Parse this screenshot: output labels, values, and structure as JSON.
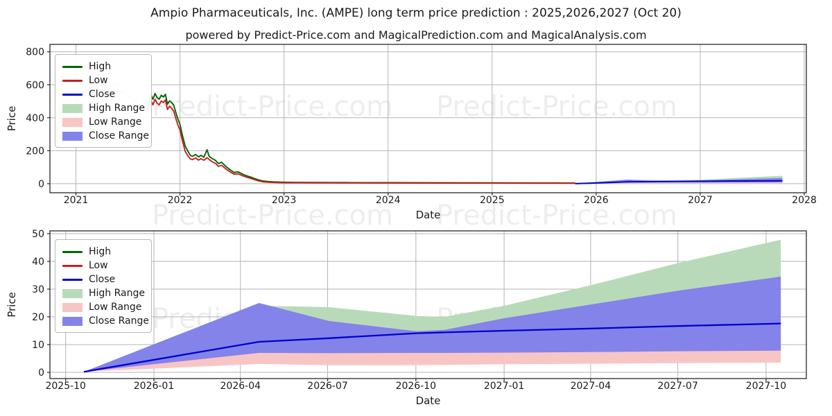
{
  "title": "Ampio Pharmaceuticals, Inc. (AMPE) long term price prediction : 2025,2026,2027 (Oct 20)",
  "subtitle": "powered by Predict-Price.com and MagicalPrediction.com and MagicalAnalysis.com",
  "watermark": "Predict-Price.com",
  "legend": [
    {
      "label": "High",
      "type": "line",
      "color": "#006600"
    },
    {
      "label": "Low",
      "type": "line",
      "color": "#c81e1e"
    },
    {
      "label": "Close",
      "type": "line",
      "color": "#0000cc"
    },
    {
      "label": "High Range",
      "type": "patch",
      "color": "#b9dab9"
    },
    {
      "label": "Low Range",
      "type": "patch",
      "color": "#f8c5c5"
    },
    {
      "label": "Close Range",
      "type": "patch",
      "color": "#8383e9"
    }
  ],
  "colors": {
    "high_line": "#006600",
    "low_line": "#c81e1e",
    "close_line": "#0000cc",
    "high_range_fill": "#b9dab9",
    "low_range_fill": "#f8c5c5",
    "close_range_fill": "#8383e9",
    "grid": "#b3b3b3",
    "frame": "#262626"
  },
  "forecast": {
    "x": [
      2025.8,
      2026.3,
      2026.5,
      2026.75,
      2026.83,
      2027.0,
      2027.25,
      2027.5,
      2027.79
    ],
    "close": [
      0.2,
      11.0,
      12.3,
      14.1,
      14.4,
      15.0,
      15.8,
      16.7,
      17.6
    ],
    "close_range_top": [
      0.2,
      25.0,
      18.5,
      14.8,
      15.3,
      19.5,
      24.5,
      29.5,
      34.5
    ],
    "close_range_bottom": [
      0.2,
      7.0,
      6.9,
      7.0,
      7.0,
      7.1,
      7.3,
      7.6,
      7.8
    ],
    "high_range_top": [
      0.2,
      24.0,
      23.5,
      20.3,
      20.0,
      24.0,
      31.5,
      39.5,
      47.8
    ],
    "low_range_bottom": [
      0.2,
      3.0,
      2.6,
      2.6,
      2.7,
      2.9,
      3.1,
      3.3,
      3.5
    ]
  },
  "chart_data": [
    {
      "type": "line",
      "name": "historical-price-with-forecast",
      "xlabel": "Date",
      "ylabel": "Price",
      "xlim": [
        2020.75,
        2028.02
      ],
      "ylim": [
        -55,
        845
      ],
      "xticks": [
        2021,
        2022,
        2023,
        2024,
        2025,
        2026,
        2027,
        2028
      ],
      "xtick_labels": [
        "2021",
        "2022",
        "2023",
        "2024",
        "2025",
        "2026",
        "2027",
        "2028"
      ],
      "yticks": [
        0,
        200,
        400,
        600,
        800
      ],
      "grid": true,
      "legend_position": "upper left",
      "draw": [
        "hist_faint",
        "hist",
        "forecast"
      ],
      "series": {
        "hist_faint_comment": "triples [x, high, low], drawn semi-transparent",
        "hist_faint": [
          [
            2021.0,
            470,
            415
          ],
          [
            2021.02,
            500,
            440
          ],
          [
            2021.04,
            540,
            470
          ],
          [
            2021.06,
            520,
            450
          ],
          [
            2021.08,
            560,
            485
          ],
          [
            2021.1,
            610,
            525
          ],
          [
            2021.12,
            690,
            580
          ],
          [
            2021.14,
            775,
            640
          ],
          [
            2021.16,
            660,
            555
          ],
          [
            2021.18,
            600,
            510
          ],
          [
            2021.2,
            630,
            540
          ],
          [
            2021.22,
            585,
            500
          ],
          [
            2021.24,
            550,
            475
          ],
          [
            2021.26,
            522,
            452
          ],
          [
            2021.28,
            505,
            440
          ],
          [
            2021.3,
            545,
            472
          ],
          [
            2021.32,
            575,
            498
          ],
          [
            2021.34,
            598,
            520
          ],
          [
            2021.36,
            568,
            494
          ],
          [
            2021.38,
            612,
            532
          ],
          [
            2021.4,
            595,
            518
          ],
          [
            2021.42,
            570,
            498
          ],
          [
            2021.44,
            548,
            478
          ],
          [
            2021.46,
            562,
            490
          ],
          [
            2021.48,
            540,
            470
          ],
          [
            2021.5,
            524,
            455
          ],
          [
            2021.52,
            538,
            466
          ],
          [
            2021.54,
            514,
            446
          ],
          [
            2021.56,
            494,
            428
          ],
          [
            2021.58,
            508,
            442
          ],
          [
            2021.6,
            486,
            422
          ],
          [
            2021.62,
            468,
            406
          ],
          [
            2021.64,
            455,
            394
          ],
          [
            2021.66,
            472,
            410
          ],
          [
            2021.68,
            462,
            402
          ]
        ],
        "hist_comment": "triples [x, high, low], solid lines",
        "hist": [
          [
            2021.68,
            462,
            430
          ],
          [
            2021.7,
            500,
            468
          ],
          [
            2021.72,
            540,
            505
          ],
          [
            2021.74,
            512,
            478
          ],
          [
            2021.76,
            547,
            512
          ],
          [
            2021.78,
            522,
            488
          ],
          [
            2021.8,
            512,
            478
          ],
          [
            2021.82,
            536,
            502
          ],
          [
            2021.84,
            526,
            492
          ],
          [
            2021.86,
            542,
            508
          ],
          [
            2021.88,
            482,
            450
          ],
          [
            2021.9,
            502,
            470
          ],
          [
            2021.92,
            492,
            458
          ],
          [
            2021.94,
            476,
            440
          ],
          [
            2021.96,
            432,
            396
          ],
          [
            2021.98,
            392,
            356
          ],
          [
            2022.0,
            360,
            325
          ],
          [
            2022.02,
            302,
            268
          ],
          [
            2022.05,
            228,
            196
          ],
          [
            2022.08,
            192,
            166
          ],
          [
            2022.1,
            172,
            150
          ],
          [
            2022.12,
            166,
            146
          ],
          [
            2022.15,
            177,
            156
          ],
          [
            2022.18,
            162,
            143
          ],
          [
            2022.2,
            172,
            152
          ],
          [
            2022.23,
            161,
            142
          ],
          [
            2022.26,
            206,
            158
          ],
          [
            2022.28,
            166,
            147
          ],
          [
            2022.31,
            152,
            133
          ],
          [
            2022.34,
            142,
            124
          ],
          [
            2022.37,
            122,
            105
          ],
          [
            2022.4,
            130,
            112
          ],
          [
            2022.44,
            105,
            90
          ],
          [
            2022.48,
            85,
            72
          ],
          [
            2022.52,
            68,
            57
          ],
          [
            2022.56,
            72,
            60
          ],
          [
            2022.6,
            58,
            48
          ],
          [
            2022.64,
            48,
            40
          ],
          [
            2022.68,
            40,
            32
          ],
          [
            2022.72,
            30,
            24
          ],
          [
            2022.76,
            22,
            16
          ],
          [
            2022.8,
            16,
            11
          ],
          [
            2022.85,
            13,
            9
          ],
          [
            2022.9,
            11,
            7.5
          ],
          [
            2023.0,
            9,
            6
          ],
          [
            2023.1,
            8,
            5.5
          ],
          [
            2023.3,
            7.5,
            5
          ],
          [
            2023.6,
            6.5,
            4.5
          ],
          [
            2024.0,
            6,
            4.2
          ],
          [
            2024.5,
            5.5,
            3.8
          ],
          [
            2025.0,
            5,
            3.5
          ],
          [
            2025.4,
            4.5,
            3
          ],
          [
            2025.8,
            4,
            2.7
          ]
        ]
      }
    },
    {
      "type": "area",
      "name": "forecast-detail",
      "xlabel": "Date",
      "ylabel": "Price",
      "xlim": [
        2025.703,
        2027.863
      ],
      "ylim": [
        -2.25,
        51
      ],
      "xticks": [
        2025.748,
        2026.0,
        2026.247,
        2026.496,
        2026.748,
        2027.0,
        2027.247,
        2027.496,
        2027.748
      ],
      "xtick_labels": [
        "2025-10",
        "2026-01",
        "2026-04",
        "2026-07",
        "2026-10",
        "2027-01",
        "2027-04",
        "2027-07",
        "2027-10"
      ],
      "yticks": [
        0,
        10,
        20,
        30,
        40,
        50
      ],
      "grid": true,
      "legend_position": "upper left",
      "draw": [
        "forecast"
      ]
    }
  ]
}
